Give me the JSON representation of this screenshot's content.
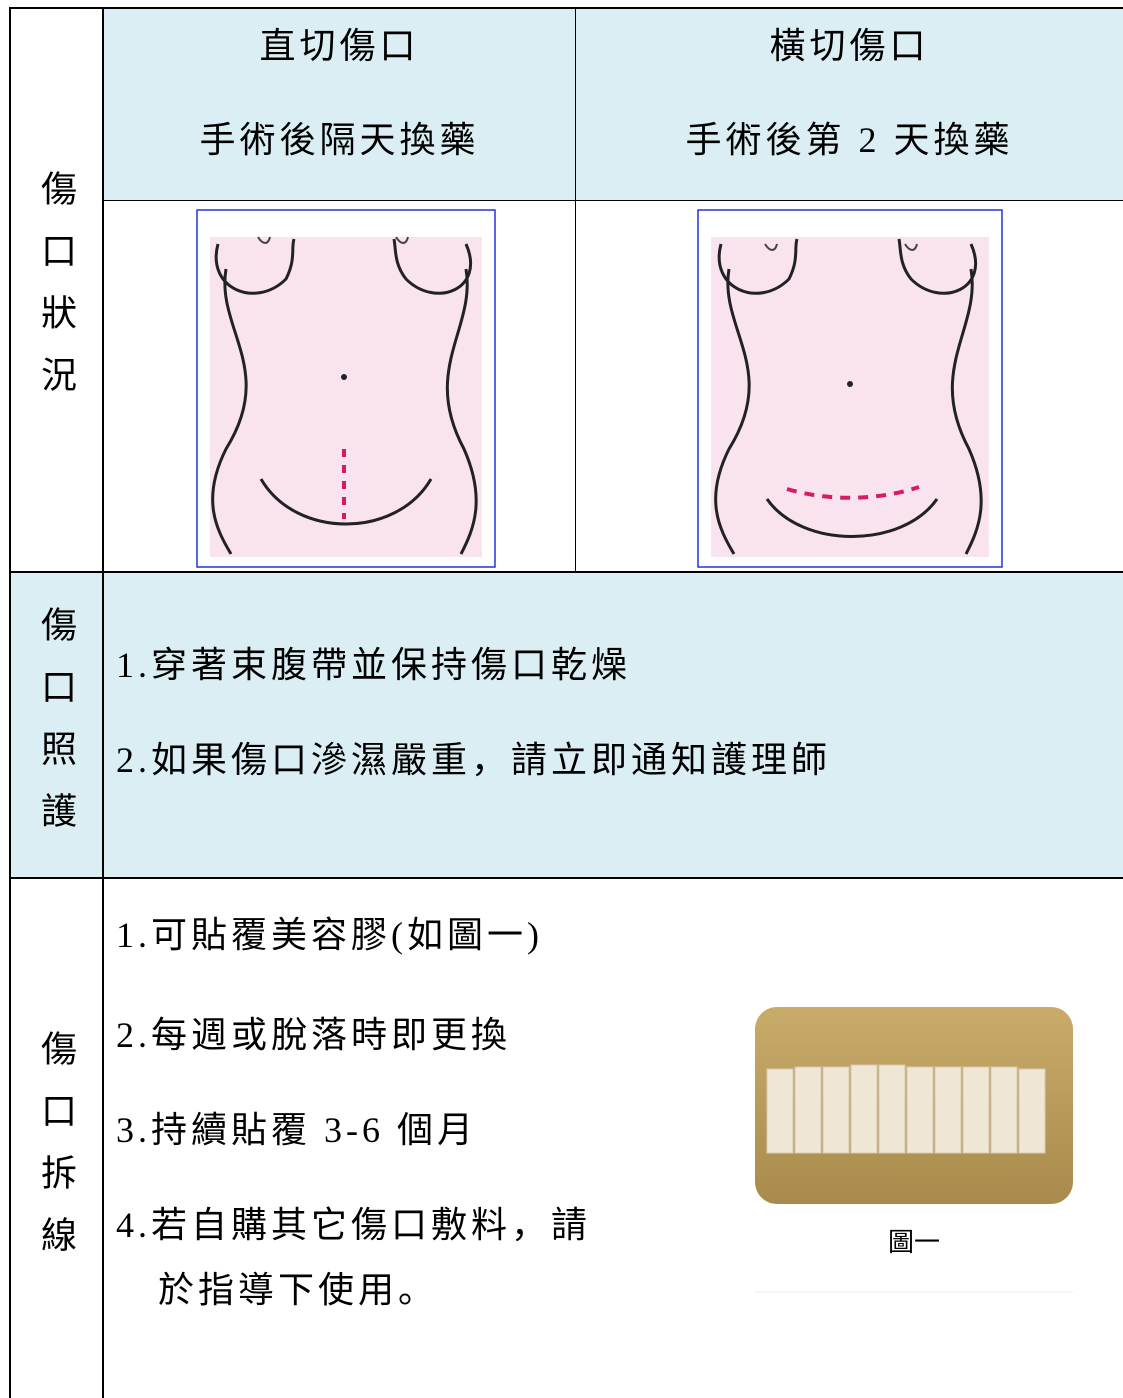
{
  "table": {
    "row_labels": [
      "傷口狀況",
      "傷口照護",
      "傷口拆線"
    ],
    "header": [
      {
        "title": "直切傷口",
        "subtitle": "手術後隔天換藥"
      },
      {
        "title": "橫切傷口",
        "subtitle": "手術後第 2 天換藥"
      }
    ],
    "care": [
      "1.穿著束腹帶並保持傷口乾燥",
      "2.如果傷口滲濕嚴重，請立即通知護理師"
    ],
    "stitches": [
      "1.可貼覆美容膠(如圖一)",
      "2.每週或脫落時即更換",
      "3.持續貼覆 3-6 個月",
      "4.若自購其它傷口敷料，請",
      "於指導下使用。"
    ],
    "figure_caption": "圖一"
  }
}
